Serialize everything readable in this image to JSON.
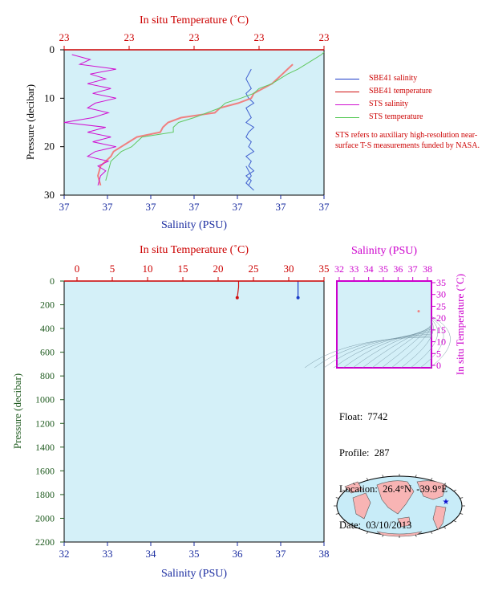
{
  "top_chart": {
    "temp_axis_title": "In situ Temperature (˚C)",
    "temp_ticks": [
      "23",
      "23",
      "23",
      "23",
      "23"
    ],
    "sal_axis_title": "Salinity (PSU)",
    "sal_ticks": [
      "37",
      "37",
      "37",
      "37",
      "37",
      "37",
      "37"
    ],
    "pressure_axis_title": "Pressure (decibar)",
    "pressure_ticks": [
      "0",
      "10",
      "20",
      "30"
    ]
  },
  "legend": [
    {
      "label": "SBE41 salinity",
      "color": "#1a3cc8"
    },
    {
      "label": "SBE41 temperature",
      "color": "#d01010"
    },
    {
      "label": "STS salinity",
      "color": "#d010d0"
    },
    {
      "label": "STS temperature",
      "color": "#50c850"
    }
  ],
  "note": "STS refers to auxiliary high-resolution near-surface T-S measurements funded by NASA.",
  "bottom_chart": {
    "temp_axis_title": "In situ Temperature (˚C)",
    "temp_ticks": [
      "0",
      "5",
      "10",
      "15",
      "20",
      "25",
      "30",
      "35"
    ],
    "sal_axis_title": "Salinity (PSU)",
    "sal_ticks": [
      "32",
      "33",
      "34",
      "35",
      "36",
      "37",
      "38"
    ],
    "pressure_axis_title": "Pressure (decibar)",
    "pressure_ticks": [
      "0",
      "200",
      "400",
      "600",
      "800",
      "1000",
      "1200",
      "1400",
      "1600",
      "1800",
      "2000",
      "2200"
    ]
  },
  "ts_chart": {
    "sal_axis_title": "Salinity (PSU)",
    "sal_ticks": [
      "32",
      "33",
      "34",
      "35",
      "36",
      "37",
      "38"
    ],
    "temp_axis_title": "In situ Temperature (˚C)",
    "temp_ticks": [
      "0",
      "5",
      "10",
      "15",
      "20",
      "25",
      "30",
      "35"
    ]
  },
  "info": {
    "float": "Float:  7742",
    "profile": "Profile:  287",
    "location": "Location:  26.4°N  -39.9°E",
    "date": "Date:  03/10/2013"
  },
  "colors": {
    "panel_bg": "#d4f0f8",
    "temp_axis": "#cc0000",
    "sal_axis": "#1a2ca0",
    "pressure_axis": "#1e5a1e",
    "ts_axis": "#cc00cc",
    "map_land": "#f8b4b4",
    "map_ocean": "#c8ecf8",
    "float_marker": "#1010d0"
  },
  "chart_data": [
    {
      "type": "line",
      "panel": "top",
      "ylim": [
        30,
        0
      ],
      "series": [
        {
          "name": "SBE41 salinity",
          "x_frac": [
            0.72,
            0.71,
            0.7,
            0.71,
            0.72,
            0.7,
            0.71,
            0.73,
            0.7,
            0.71,
            0.72,
            0.7,
            0.73,
            0.71,
            0.7,
            0.72,
            0.71,
            0.73,
            0.7,
            0.72,
            0.71,
            0.73,
            0.7,
            0.72,
            0.71,
            0.73,
            0.7,
            0.72,
            0.71,
            0.7
          ],
          "pressure": [
            4,
            5,
            6,
            7,
            8,
            9,
            10,
            11,
            12,
            13,
            14,
            15,
            16,
            17,
            18,
            19,
            20,
            21,
            22,
            23,
            24,
            25,
            26,
            27,
            28,
            29,
            27.5,
            26,
            25,
            24
          ]
        },
        {
          "name": "SBE41 temperature",
          "x_frac": [
            0.88,
            0.86,
            0.84,
            0.8,
            0.73,
            0.72,
            0.67,
            0.6,
            0.58,
            0.45,
            0.4,
            0.38,
            0.37,
            0.28,
            0.25,
            0.22,
            0.19,
            0.18,
            0.16,
            0.14,
            0.13,
            0.14
          ],
          "pressure": [
            3,
            4,
            5,
            7,
            9,
            10,
            11,
            12,
            13,
            14,
            15,
            16,
            17,
            18,
            19,
            20,
            21,
            22,
            23,
            24,
            26,
            28
          ]
        },
        {
          "name": "STS salinity",
          "x_frac": [
            0.03,
            0.1,
            0.06,
            0.2,
            0.1,
            0.16,
            0.09,
            0.18,
            0.11,
            0.2,
            0.12,
            0.09,
            0.17,
            0.11,
            0.0,
            0.16,
            0.09,
            0.18,
            0.11,
            0.2,
            0.12,
            0.09,
            0.17,
            0.13,
            0.16,
            0.14,
            0.13
          ],
          "pressure": [
            1,
            2,
            3,
            4,
            5,
            6,
            7,
            8,
            9,
            10,
            11,
            12,
            13,
            14,
            15,
            16,
            17,
            18,
            19,
            20,
            21,
            22,
            23,
            24,
            25,
            26,
            28
          ]
        },
        {
          "name": "STS temperature",
          "x_frac": [
            1.0,
            0.99,
            0.96,
            0.93,
            0.9,
            0.86,
            0.83,
            0.8,
            0.75,
            0.73,
            0.68,
            0.62,
            0.6,
            0.5,
            0.44,
            0.42,
            0.42,
            0.3,
            0.28,
            0.26,
            0.22,
            0.2,
            0.18,
            0.17,
            0.16
          ],
          "pressure": [
            0.5,
            1,
            2,
            3,
            4,
            5,
            6,
            7,
            8,
            9,
            10,
            11,
            12,
            14,
            15,
            16,
            17,
            18,
            19,
            20,
            21,
            22,
            23,
            25,
            27
          ]
        }
      ]
    },
    {
      "type": "line",
      "panel": "bottom",
      "xlim_temp": [
        0,
        35
      ],
      "xlim_sal": [
        32,
        38
      ],
      "ylim": [
        2200,
        0
      ],
      "series": [
        {
          "name": "SBE41 temperature",
          "temp": [
            22.9,
            22.9,
            22.8,
            22.7
          ],
          "pressure": [
            0,
            50,
            100,
            140
          ]
        },
        {
          "name": "SBE41 salinity",
          "sal": [
            37.4,
            37.4,
            37.4,
            37.4
          ],
          "pressure": [
            0,
            50,
            100,
            140
          ]
        }
      ]
    },
    {
      "type": "scatter",
      "panel": "ts",
      "xlim": [
        32,
        38
      ],
      "ylim": [
        0,
        35
      ],
      "points": [
        {
          "sal": 37.4,
          "temp": 22.9
        }
      ]
    }
  ]
}
